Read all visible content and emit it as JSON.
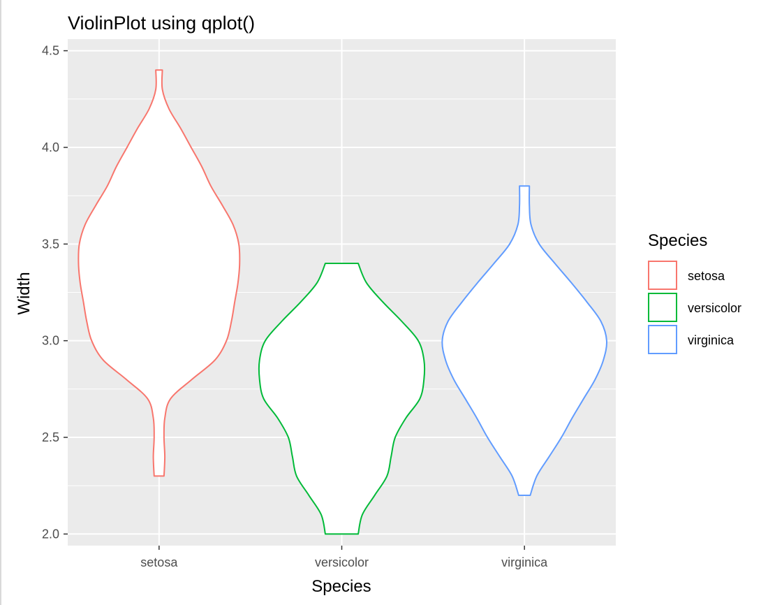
{
  "chart_data": {
    "type": "violin",
    "title": "ViolinPlot using qplot()",
    "xlabel": "Species",
    "ylabel": "Width",
    "ylim": [
      1.94,
      4.56
    ],
    "yticks": [
      "2.0",
      "2.5",
      "3.0",
      "3.5",
      "4.0",
      "4.5"
    ],
    "ytick_values": [
      2.0,
      2.5,
      3.0,
      3.5,
      4.0,
      4.5
    ],
    "categories": [
      "setosa",
      "versicolor",
      "virginica"
    ],
    "grid": true,
    "legend": {
      "title": "Species",
      "position": "right",
      "entries": [
        "setosa",
        "versicolor",
        "virginica"
      ]
    },
    "series": [
      {
        "name": "setosa",
        "color": "#F8766D",
        "min": 2.3,
        "max": 4.4,
        "density": [
          [
            2.3,
            0.06
          ],
          [
            2.4,
            0.07
          ],
          [
            2.5,
            0.06
          ],
          [
            2.6,
            0.07
          ],
          [
            2.7,
            0.14
          ],
          [
            2.8,
            0.4
          ],
          [
            2.9,
            0.68
          ],
          [
            3.0,
            0.82
          ],
          [
            3.1,
            0.88
          ],
          [
            3.2,
            0.92
          ],
          [
            3.3,
            0.96
          ],
          [
            3.4,
            0.98
          ],
          [
            3.5,
            0.97
          ],
          [
            3.6,
            0.9
          ],
          [
            3.7,
            0.77
          ],
          [
            3.8,
            0.63
          ],
          [
            3.9,
            0.52
          ],
          [
            4.0,
            0.39
          ],
          [
            4.1,
            0.26
          ],
          [
            4.2,
            0.12
          ],
          [
            4.3,
            0.04
          ],
          [
            4.4,
            0.04
          ]
        ]
      },
      {
        "name": "versicolor",
        "color": "#00BA38",
        "min": 2.0,
        "max": 3.4,
        "density": [
          [
            2.0,
            0.2
          ],
          [
            2.1,
            0.25
          ],
          [
            2.2,
            0.4
          ],
          [
            2.3,
            0.55
          ],
          [
            2.4,
            0.6
          ],
          [
            2.5,
            0.65
          ],
          [
            2.6,
            0.78
          ],
          [
            2.7,
            0.95
          ],
          [
            2.8,
            1.0
          ],
          [
            2.9,
            1.0
          ],
          [
            3.0,
            0.93
          ],
          [
            3.1,
            0.73
          ],
          [
            3.2,
            0.5
          ],
          [
            3.3,
            0.3
          ],
          [
            3.4,
            0.2
          ]
        ]
      },
      {
        "name": "virginica",
        "color": "#619CFF",
        "min": 2.2,
        "max": 3.8,
        "density": [
          [
            2.2,
            0.07
          ],
          [
            2.3,
            0.15
          ],
          [
            2.4,
            0.3
          ],
          [
            2.5,
            0.45
          ],
          [
            2.6,
            0.58
          ],
          [
            2.7,
            0.72
          ],
          [
            2.8,
            0.86
          ],
          [
            2.9,
            0.96
          ],
          [
            3.0,
            1.0
          ],
          [
            3.1,
            0.93
          ],
          [
            3.2,
            0.76
          ],
          [
            3.3,
            0.57
          ],
          [
            3.4,
            0.37
          ],
          [
            3.5,
            0.18
          ],
          [
            3.6,
            0.08
          ],
          [
            3.7,
            0.06
          ],
          [
            3.8,
            0.06
          ]
        ]
      }
    ]
  }
}
